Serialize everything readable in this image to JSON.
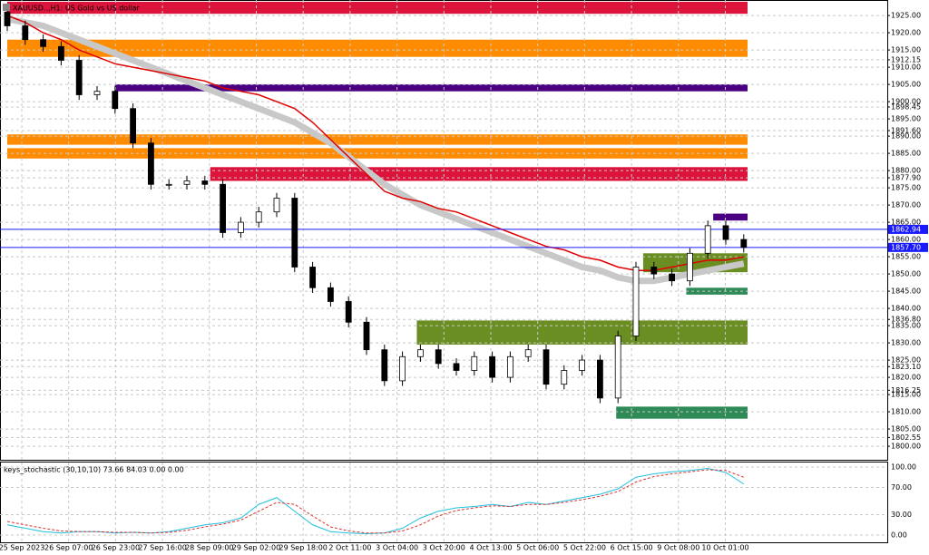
{
  "chart_data": {
    "type": "candlestick",
    "title": "XAUUSD..,H1: US Gold vs US dollar",
    "ylim": [
      1796.6,
      1929.5
    ],
    "yticks": [
      {
        "value": 1925,
        "label": "1925.00"
      },
      {
        "value": 1920,
        "label": "1920.00"
      },
      {
        "value": 1915,
        "label": "1915.00"
      },
      {
        "value": 1912.15,
        "label": "1912.15"
      },
      {
        "value": 1910,
        "label": "1910.00"
      },
      {
        "value": 1905,
        "label": "1905.00"
      },
      {
        "value": 1900,
        "label": "1900.00"
      },
      {
        "value": 1898.45,
        "label": "1898.45"
      },
      {
        "value": 1895,
        "label": "1895.00"
      },
      {
        "value": 1891.6,
        "label": "1891.60"
      },
      {
        "value": 1890,
        "label": "1890.00"
      },
      {
        "value": 1885,
        "label": "1885.00"
      },
      {
        "value": 1880,
        "label": "1880.00"
      },
      {
        "value": 1877.9,
        "label": "1877.90"
      },
      {
        "value": 1875,
        "label": "1875.00"
      },
      {
        "value": 1870,
        "label": "1870.00"
      },
      {
        "value": 1865,
        "label": "1865.00"
      },
      {
        "value": 1860,
        "label": "1860.00"
      },
      {
        "value": 1855,
        "label": "1855.00"
      },
      {
        "value": 1850,
        "label": "1850.00"
      },
      {
        "value": 1845,
        "label": "1845.00"
      },
      {
        "value": 1840,
        "label": "1840.00"
      },
      {
        "value": 1836.8,
        "label": "1836.80"
      },
      {
        "value": 1835,
        "label": "1835.00"
      },
      {
        "value": 1830,
        "label": "1830.00"
      },
      {
        "value": 1825,
        "label": "1825.00"
      },
      {
        "value": 1823.1,
        "label": "1823.10"
      },
      {
        "value": 1820,
        "label": "1820.00"
      },
      {
        "value": 1816.25,
        "label": "1816.25"
      },
      {
        "value": 1815,
        "label": "1815.00"
      },
      {
        "value": 1810,
        "label": "1810.00"
      },
      {
        "value": 1805,
        "label": "1805.00"
      },
      {
        "value": 1802.55,
        "label": "1802.55"
      },
      {
        "value": 1800,
        "label": "1800.00"
      }
    ],
    "price_lines": [
      {
        "value": 1862.94,
        "label": "1862.94",
        "color": "#1a1aff"
      },
      {
        "value": 1857.7,
        "label": "1857.70",
        "color": "#1a1aff"
      }
    ],
    "x_labels": [
      "25 Sep 2023",
      "26 Sep 07:00",
      "26 Sep 23:00",
      "27 Sep 16:00",
      "28 Sep 09:00",
      "29 Sep 02:00",
      "29 Sep 18:00",
      "2 Oct 11:00",
      "3 Oct 04:00",
      "3 Oct 20:00",
      "4 Oct 13:00",
      "5 Oct 06:00",
      "5 Oct 22:00",
      "6 Oct 15:00",
      "9 Oct 08:00",
      "10 Oct 01:00"
    ],
    "open": [
      1926,
      1922,
      1918,
      1916,
      1912,
      1902,
      1903,
      1898,
      1888,
      1876,
      1876,
      1877,
      1876,
      1862,
      1865,
      1868,
      1872,
      1852,
      1846,
      1842,
      1836,
      1828,
      1819,
      1826,
      1828,
      1824,
      1822,
      1826,
      1820,
      1826,
      1828,
      1818,
      1822,
      1825,
      1814,
      1832,
      1852,
      1850,
      1848,
      1856,
      1864,
      1860
    ],
    "high": [
      1927.5,
      1923.5,
      1919.5,
      1917.5,
      1913.5,
      1904.5,
      1904.5,
      1899.5,
      1889.5,
      1877.5,
      1878.5,
      1878.5,
      1877.5,
      1866.5,
      1869.5,
      1873.5,
      1873.5,
      1853.5,
      1847.5,
      1843.5,
      1837.5,
      1829.5,
      1827.5,
      1829.5,
      1829.5,
      1825.5,
      1827.5,
      1827.5,
      1827.5,
      1829.5,
      1829.5,
      1823.5,
      1826.5,
      1826.5,
      1833.5,
      1853.5,
      1853.5,
      1851.5,
      1857.5,
      1865.5,
      1865.5,
      1861.5
    ],
    "low": [
      1920.5,
      1916.5,
      1914.5,
      1910.5,
      1900.5,
      1900.5,
      1896.5,
      1886.5,
      1874.5,
      1874.5,
      1874.5,
      1874.5,
      1860.5,
      1860.5,
      1863.5,
      1866.5,
      1850.5,
      1844.5,
      1840.5,
      1834.5,
      1826.5,
      1817.5,
      1817.5,
      1824.5,
      1822.5,
      1820.5,
      1820.5,
      1818.5,
      1818.5,
      1824.5,
      1816.5,
      1816.5,
      1820.5,
      1812.5,
      1812.5,
      1830.5,
      1848.5,
      1846.5,
      1846.5,
      1854.5,
      1858.5,
      1856.2
    ],
    "close": [
      1922,
      1918,
      1916,
      1912,
      1902,
      1903,
      1898,
      1888,
      1876,
      1876,
      1877,
      1876,
      1862,
      1865,
      1868,
      1872,
      1852,
      1846,
      1842,
      1836,
      1828,
      1819,
      1826,
      1828,
      1824,
      1822,
      1826,
      1820,
      1826,
      1828,
      1818,
      1822,
      1825,
      1814,
      1832,
      1852,
      1850,
      1848,
      1856,
      1864,
      1860,
      1857.7
    ],
    "overlays": [
      {
        "color": "#c8c8c8",
        "values": [
          1924,
          1923,
          1922,
          1920,
          1918,
          1916,
          1914,
          1912,
          1910,
          1908,
          1906,
          1904,
          1902,
          1900,
          1898,
          1896,
          1894,
          1891,
          1888,
          1884,
          1880,
          1876,
          1873,
          1870,
          1868,
          1866,
          1864,
          1862,
          1860,
          1858,
          1856,
          1854,
          1852,
          1851,
          1849,
          1848,
          1848,
          1849,
          1850,
          1851,
          1852,
          1853
        ]
      },
      {
        "color": "#e00000",
        "values": [
          1925,
          1923,
          1920,
          1918,
          1915,
          1913,
          1911,
          1910,
          1909,
          1908,
          1907,
          1906,
          1904,
          1903,
          1902,
          1900,
          1898,
          1894,
          1889,
          1884,
          1879,
          1874,
          1872,
          1871,
          1869,
          1868,
          1866,
          1864,
          1862,
          1860,
          1858,
          1857,
          1855,
          1854,
          1852,
          1851,
          1851,
          1852,
          1853,
          1854,
          1854,
          1855
        ]
      }
    ],
    "zones": [
      {
        "low": 1925.5,
        "high": 1929,
        "color": "#dc143c",
        "start": 0
      },
      {
        "low": 1913,
        "high": 1918,
        "color": "#ff8c00",
        "start": 0
      },
      {
        "low": 1903,
        "high": 1905,
        "color": "#4b0082",
        "start": 6
      },
      {
        "low": 1887.5,
        "high": 1890.5,
        "color": "#ff8c00",
        "start": 0
      },
      {
        "low": 1883.5,
        "high": 1886.5,
        "color": "#ff8c00",
        "start": 0
      },
      {
        "low": 1877,
        "high": 1881,
        "color": "#dc143c",
        "start": 11.3
      },
      {
        "low": 1865.5,
        "high": 1867.5,
        "color": "#4b0082",
        "start": 39.3
      },
      {
        "low": 1850.5,
        "high": 1856,
        "color": "#6b8e23",
        "start": 35.4
      },
      {
        "low": 1844,
        "high": 1846,
        "color": "#2e8b57",
        "start": 37.8
      },
      {
        "low": 1829.5,
        "high": 1836.5,
        "color": "#6b8e23",
        "start": 22.8
      },
      {
        "low": 1808,
        "high": 1811.5,
        "color": "#2e8b57",
        "start": 33.9
      }
    ],
    "stochastic": {
      "label": "keys_stochastic (30,10,10) 73.66 84.03 0.00 0.00",
      "ylim": [
        0,
        100
      ],
      "yticks": [
        {
          "value": 100,
          "label": "100.00"
        },
        {
          "value": 70,
          "label": "70.00"
        },
        {
          "value": 30,
          "label": "30.00"
        },
        {
          "value": 0,
          "label": "0.00"
        }
      ],
      "main": {
        "color": "#20c0e0",
        "values": [
          15,
          10,
          5,
          3,
          5,
          5,
          3,
          4,
          3,
          5,
          10,
          15,
          18,
          25,
          45,
          55,
          35,
          15,
          5,
          3,
          2,
          3,
          10,
          25,
          35,
          40,
          42,
          45,
          42,
          48,
          45,
          50,
          55,
          60,
          68,
          85,
          90,
          93,
          95,
          98,
          92,
          75
        ]
      },
      "signal": {
        "color": "#e03030",
        "values": [
          20,
          15,
          10,
          6,
          5,
          5,
          4,
          4,
          3,
          4,
          7,
          12,
          16,
          22,
          35,
          48,
          45,
          28,
          12,
          6,
          3,
          3,
          6,
          15,
          28,
          36,
          40,
          43,
          42,
          45,
          45,
          48,
          52,
          57,
          64,
          78,
          86,
          90,
          93,
          96,
          95,
          85
        ]
      }
    }
  }
}
